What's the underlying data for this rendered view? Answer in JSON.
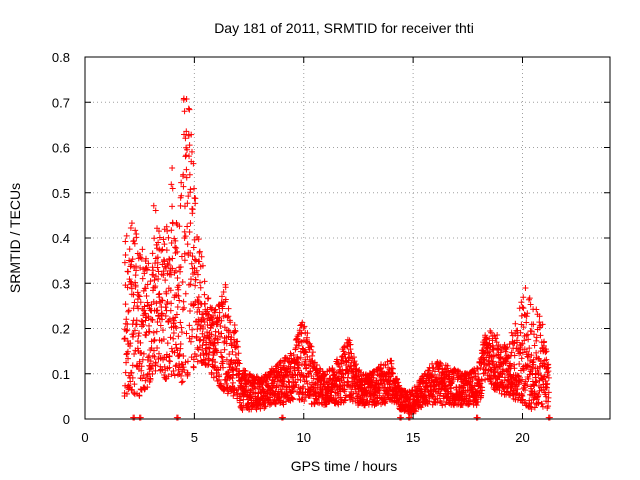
{
  "chart_data": {
    "type": "scatter",
    "title": "Day 181 of 2011, SRMTID for receiver thti",
    "xlabel": "GPS time / hours",
    "ylabel": "SRMTID / TECUs",
    "xlim": [
      0,
      24
    ],
    "ylim": [
      0,
      0.8
    ],
    "x_ticks": [
      0,
      5,
      10,
      15,
      20
    ],
    "y_ticks": [
      0,
      0.1,
      0.2,
      0.3,
      0.4,
      0.5,
      0.6,
      0.7,
      0.8
    ],
    "x_tick_labels": [
      "0",
      "5",
      "10",
      "15",
      "20"
    ],
    "y_tick_labels": [
      "0",
      "0.1",
      "0.2",
      "0.3",
      "0.4",
      "0.5",
      "0.6",
      "0.7",
      "0.8"
    ],
    "grid": true,
    "marker": "+",
    "color": "#ff0000",
    "envelope": [
      [
        1.8,
        0.05,
        0.4
      ],
      [
        2.2,
        0.05,
        0.44
      ],
      [
        2.6,
        0.05,
        0.38
      ],
      [
        3.0,
        0.08,
        0.34
      ],
      [
        3.2,
        0.1,
        0.52
      ],
      [
        3.5,
        0.1,
        0.38
      ],
      [
        3.8,
        0.08,
        0.46
      ],
      [
        4.0,
        0.1,
        0.57
      ],
      [
        4.3,
        0.08,
        0.4
      ],
      [
        4.5,
        0.08,
        0.74
      ],
      [
        4.8,
        0.1,
        0.68
      ],
      [
        5.1,
        0.12,
        0.47
      ],
      [
        5.5,
        0.12,
        0.3
      ],
      [
        6.0,
        0.08,
        0.24
      ],
      [
        6.4,
        0.06,
        0.3
      ],
      [
        6.8,
        0.05,
        0.22
      ],
      [
        7.2,
        0.02,
        0.11
      ],
      [
        8.0,
        0.02,
        0.09
      ],
      [
        8.5,
        0.03,
        0.11
      ],
      [
        9.0,
        0.03,
        0.13
      ],
      [
        9.5,
        0.04,
        0.15
      ],
      [
        10.0,
        0.04,
        0.24
      ],
      [
        10.5,
        0.03,
        0.13
      ],
      [
        11.0,
        0.03,
        0.1
      ],
      [
        11.5,
        0.03,
        0.13
      ],
      [
        12.0,
        0.04,
        0.19
      ],
      [
        12.5,
        0.03,
        0.11
      ],
      [
        13.0,
        0.03,
        0.1
      ],
      [
        13.5,
        0.03,
        0.12
      ],
      [
        14.0,
        0.04,
        0.13
      ],
      [
        14.4,
        0.02,
        0.07
      ],
      [
        14.9,
        0.01,
        0.06
      ],
      [
        15.5,
        0.03,
        0.1
      ],
      [
        16.0,
        0.03,
        0.13
      ],
      [
        16.5,
        0.03,
        0.12
      ],
      [
        17.0,
        0.03,
        0.11
      ],
      [
        17.5,
        0.03,
        0.1
      ],
      [
        18.0,
        0.03,
        0.12
      ],
      [
        18.3,
        0.08,
        0.2
      ],
      [
        18.8,
        0.06,
        0.19
      ],
      [
        19.3,
        0.05,
        0.16
      ],
      [
        19.8,
        0.04,
        0.24
      ],
      [
        20.1,
        0.03,
        0.3
      ],
      [
        20.4,
        0.02,
        0.26
      ],
      [
        20.8,
        0.03,
        0.24
      ],
      [
        21.2,
        0.02,
        0.13
      ]
    ],
    "zero_points": [
      2.2,
      2.5,
      4.2,
      9.0,
      14.4,
      14.8,
      17.9,
      21.2
    ]
  }
}
